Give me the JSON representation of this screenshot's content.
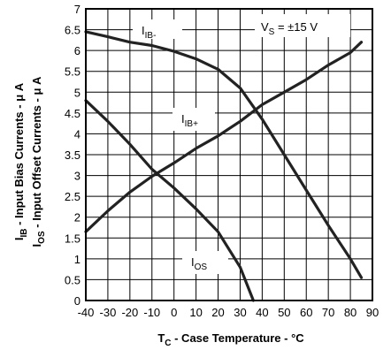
{
  "chart_data": {
    "type": "line",
    "xlabel": {
      "main": "T",
      "sub": "C",
      "rest": " - Case Temperature - °C"
    },
    "ylabel_lines": [
      {
        "main": "I",
        "sub": "IB",
        "rest": " - Input Bias Currents -  μ A"
      },
      {
        "main": "I",
        "sub": "OS",
        "rest": " - Input Offset Currents -  μ A"
      }
    ],
    "xlim": [
      -40,
      90
    ],
    "ylim": [
      0,
      7
    ],
    "x_ticks": [
      -40,
      -30,
      -20,
      -10,
      0,
      10,
      20,
      30,
      40,
      50,
      60,
      70,
      80,
      90
    ],
    "x_tick_labels": [
      "-40",
      "-30",
      "-20",
      "-10",
      "0",
      "10",
      "20",
      "30",
      "40",
      "50",
      "60",
      "70",
      "80",
      "90"
    ],
    "y_ticks": [
      0,
      0.5,
      1,
      1.5,
      2,
      2.5,
      3,
      3.5,
      4,
      4.5,
      5,
      5.5,
      6,
      6.5,
      7
    ],
    "y_tick_labels": [
      "0",
      "0.5",
      "1",
      "1.5",
      "2",
      "2.5",
      "3",
      "3.5",
      "4",
      "4.5",
      "5",
      "5.5",
      "6",
      "6.5",
      "7"
    ],
    "grid": true,
    "condition_label": {
      "main": "V",
      "sub": "S",
      "rest": " = ±15 V"
    },
    "series": [
      {
        "label": {
          "main": "I",
          "sub": "IB-",
          "rest": ""
        },
        "x": [
          -40,
          -30,
          -20,
          -10,
          0,
          10,
          20,
          30,
          40,
          50,
          60,
          70,
          80,
          85
        ],
        "y": [
          6.45,
          6.33,
          6.2,
          6.12,
          5.98,
          5.8,
          5.55,
          5.1,
          4.35,
          3.5,
          2.65,
          1.8,
          1.0,
          0.55
        ]
      },
      {
        "label": {
          "main": "I",
          "sub": "IB+",
          "rest": ""
        },
        "x": [
          -40,
          -30,
          -20,
          -10,
          0,
          10,
          20,
          30,
          40,
          50,
          60,
          70,
          80,
          85
        ],
        "y": [
          1.65,
          2.15,
          2.6,
          2.98,
          3.3,
          3.65,
          3.95,
          4.3,
          4.7,
          5.0,
          5.3,
          5.65,
          5.95,
          6.2
        ]
      },
      {
        "label": {
          "main": "I",
          "sub": "OS",
          "rest": ""
        },
        "x": [
          -40,
          -30,
          -20,
          -10,
          0,
          10,
          20,
          30,
          36
        ],
        "y": [
          4.8,
          4.3,
          3.75,
          3.15,
          2.7,
          2.2,
          1.65,
          0.8,
          0.0
        ]
      }
    ]
  }
}
